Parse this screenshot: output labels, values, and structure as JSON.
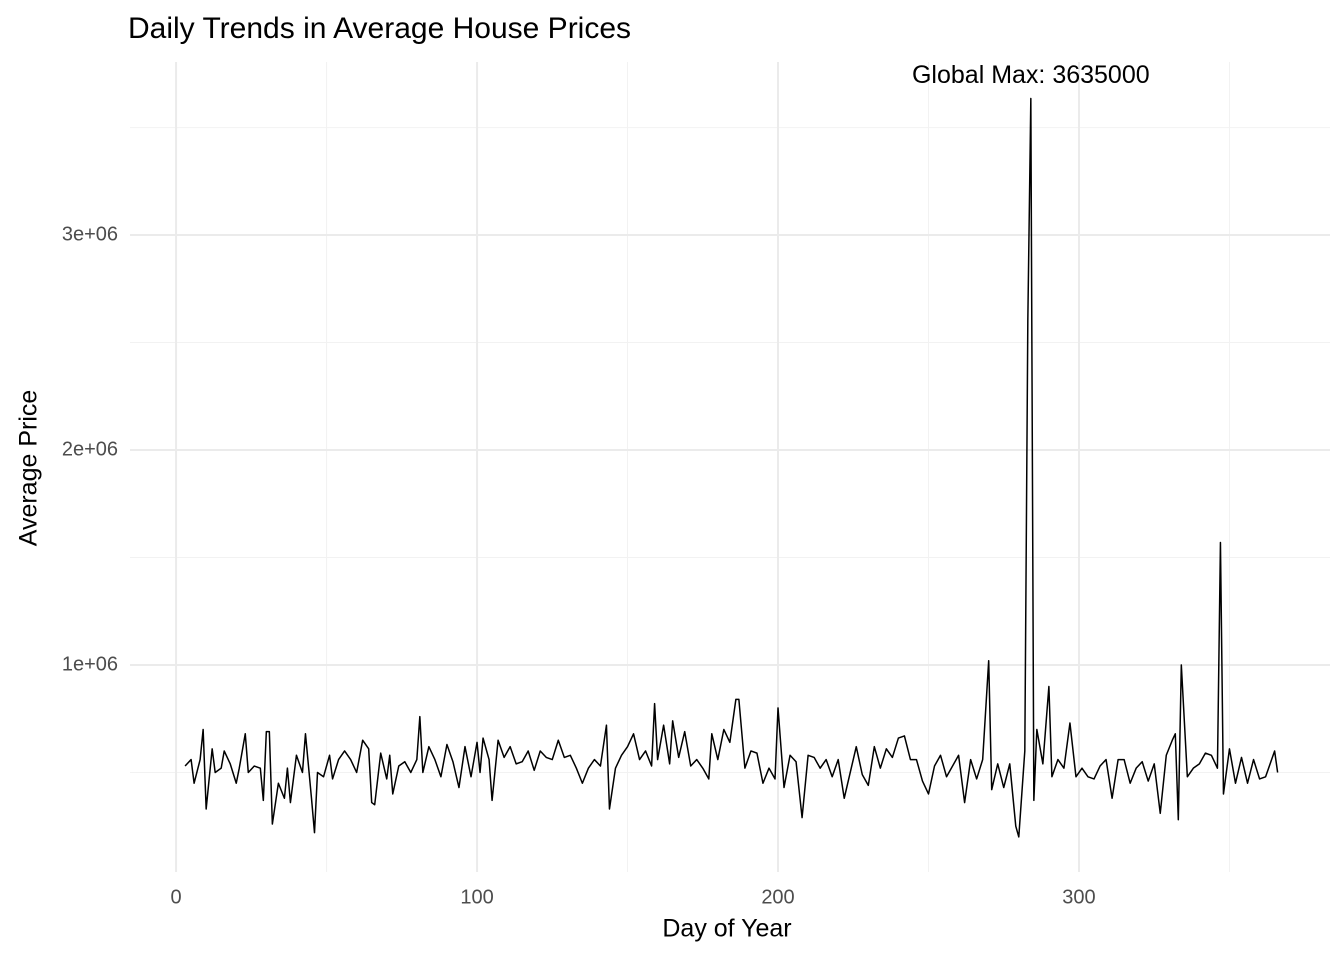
{
  "chart_data": {
    "type": "line",
    "title": "Daily Trends in Average House Prices",
    "x_label": "Day of Year",
    "y_label": "Average Price",
    "annotation": {
      "text": "Global Max: 3635000",
      "x": 284,
      "y": 3635000
    },
    "xlim": [
      -15.3,
      383.4
    ],
    "ylim": [
      37000,
      3805000
    ],
    "xticks": [
      0,
      100,
      200,
      300
    ],
    "x_minor": [
      50,
      150,
      250,
      350
    ],
    "yticks": [
      {
        "value": 1000000,
        "label": "1e+06"
      },
      {
        "value": 2000000,
        "label": "2e+06"
      },
      {
        "value": 3000000,
        "label": "3e+06"
      }
    ],
    "y_minor": [
      500000,
      1500000,
      2500000,
      3500000
    ],
    "grid": true,
    "series": [
      {
        "color": "#000000",
        "x": [
          3,
          5,
          6,
          8,
          9,
          10,
          12,
          13,
          15,
          16,
          18,
          20,
          21,
          23,
          24,
          26,
          28,
          29,
          30,
          31,
          32,
          34,
          36,
          37,
          38,
          40,
          42,
          43,
          45,
          46,
          47,
          49,
          51,
          52,
          54,
          56,
          58,
          60,
          62,
          64,
          65,
          66,
          68,
          70,
          71,
          72,
          74,
          76,
          78,
          80,
          81,
          82,
          84,
          86,
          88,
          90,
          92,
          94,
          96,
          98,
          100,
          101,
          102,
          104,
          105,
          107,
          109,
          111,
          113,
          115,
          117,
          119,
          121,
          123,
          125,
          127,
          129,
          131,
          133,
          135,
          137,
          139,
          141,
          143,
          144,
          146,
          148,
          150,
          152,
          154,
          156,
          158,
          159,
          160,
          162,
          164,
          165,
          167,
          169,
          171,
          173,
          175,
          177,
          178,
          180,
          182,
          184,
          186,
          187,
          189,
          191,
          193,
          195,
          197,
          199,
          200,
          202,
          204,
          206,
          208,
          210,
          212,
          214,
          216,
          218,
          220,
          222,
          224,
          226,
          228,
          230,
          232,
          234,
          236,
          238,
          240,
          242,
          244,
          246,
          248,
          250,
          252,
          254,
          256,
          258,
          260,
          262,
          264,
          266,
          268,
          270,
          271,
          273,
          275,
          277,
          279,
          280,
          282,
          283,
          284,
          285,
          286,
          288,
          290,
          291,
          293,
          295,
          297,
          299,
          301,
          303,
          305,
          307,
          309,
          311,
          313,
          315,
          317,
          319,
          321,
          323,
          325,
          327,
          329,
          331,
          332,
          333,
          334,
          336,
          338,
          340,
          342,
          344,
          346,
          347,
          348,
          350,
          352,
          354,
          356,
          358,
          360,
          362,
          365,
          366
        ],
        "values": [
          530000,
          560000,
          450000,
          560000,
          700000,
          330000,
          610000,
          500000,
          520000,
          600000,
          540000,
          450000,
          520000,
          680000,
          500000,
          530000,
          520000,
          370000,
          690000,
          690000,
          260000,
          450000,
          380000,
          520000,
          360000,
          580000,
          500000,
          680000,
          380000,
          220000,
          500000,
          480000,
          580000,
          470000,
          560000,
          600000,
          560000,
          500000,
          650000,
          610000,
          360000,
          350000,
          590000,
          470000,
          580000,
          400000,
          530000,
          550000,
          500000,
          560000,
          760000,
          500000,
          620000,
          560000,
          480000,
          630000,
          550000,
          430000,
          620000,
          480000,
          640000,
          500000,
          660000,
          560000,
          370000,
          650000,
          570000,
          620000,
          540000,
          550000,
          600000,
          510000,
          600000,
          570000,
          560000,
          650000,
          570000,
          580000,
          520000,
          450000,
          520000,
          560000,
          530000,
          720000,
          330000,
          520000,
          580000,
          620000,
          680000,
          560000,
          600000,
          530000,
          820000,
          560000,
          720000,
          540000,
          740000,
          570000,
          690000,
          530000,
          560000,
          520000,
          470000,
          680000,
          560000,
          700000,
          640000,
          840000,
          840000,
          520000,
          600000,
          590000,
          450000,
          520000,
          470000,
          800000,
          430000,
          580000,
          550000,
          290000,
          580000,
          570000,
          520000,
          560000,
          480000,
          560000,
          380000,
          500000,
          620000,
          490000,
          440000,
          620000,
          520000,
          610000,
          570000,
          660000,
          670000,
          560000,
          560000,
          460000,
          400000,
          530000,
          580000,
          480000,
          530000,
          580000,
          360000,
          560000,
          470000,
          560000,
          1020000,
          420000,
          540000,
          430000,
          540000,
          250000,
          200000,
          600000,
          2600000,
          3635000,
          370000,
          700000,
          540000,
          900000,
          480000,
          560000,
          520000,
          730000,
          480000,
          520000,
          480000,
          470000,
          530000,
          560000,
          380000,
          560000,
          560000,
          450000,
          520000,
          550000,
          460000,
          540000,
          310000,
          580000,
          650000,
          680000,
          280000,
          1000000,
          480000,
          520000,
          540000,
          590000,
          580000,
          520000,
          1570000,
          400000,
          610000,
          450000,
          570000,
          450000,
          560000,
          470000,
          480000,
          600000,
          500000
        ]
      }
    ]
  }
}
